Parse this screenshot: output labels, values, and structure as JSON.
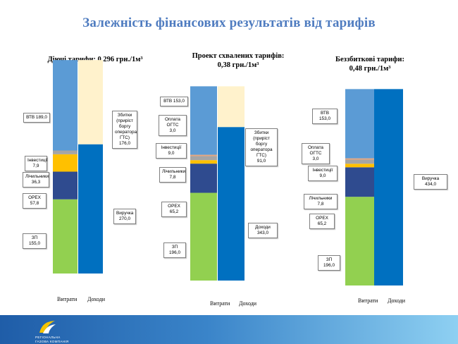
{
  "page": {
    "title": "Залежність фінансових результатів від тарифів",
    "logo_text_line1": "РЕГІОНАЛЬНА",
    "logo_text_line2": "ГАЗОВА КОМПАНІЯ",
    "colors": {
      "footer_start": "#1f5da8",
      "footer_end": "#8ed0f2",
      "title": "#4f7cc0"
    }
  },
  "chart_data": [
    {
      "type": "bar",
      "stacked": true,
      "subtitle": "Діючі тарифи:   0,296 грн./1м³",
      "categories": [
        "Витрати",
        "Доходи"
      ],
      "series": [
        {
          "name": "ЗП",
          "values": [
            155.0,
            0
          ],
          "color": "#92d050"
        },
        {
          "name": "OPEX",
          "values": [
            57.8,
            0
          ],
          "color": "#2f4b8f"
        },
        {
          "name": "Лічильники",
          "values": [
            36.3,
            0
          ],
          "color": "#ffc000"
        },
        {
          "name": "Інвестиції",
          "values": [
            7.9,
            0
          ],
          "color": "#a5a5a5"
        },
        {
          "name": "ВТВ",
          "values": [
            189.0,
            0
          ],
          "color": "#5b9bd5"
        },
        {
          "name": "Виручка",
          "values": [
            0,
            270.0
          ],
          "color": "#0070c0"
        },
        {
          "name": "Збитки (приріст боргу оператора ГТС)",
          "values": [
            0,
            176.0
          ],
          "color": "#fff2cc"
        }
      ],
      "annotations": [
        {
          "text": "ВТВ  189,0"
        },
        {
          "text": "Інвестиції\n7,9"
        },
        {
          "text": "Лічильники\n36,3"
        },
        {
          "text": "OPEX  57,8"
        },
        {
          "text": "ЗП  155,0"
        },
        {
          "text": "Збитки\n(приріст\nборгу\nоператора\nГТС) 176,0"
        },
        {
          "text": "Виручка\n270,0"
        }
      ]
    },
    {
      "type": "bar",
      "stacked": true,
      "subtitle": "Проект схвалених тарифів:\n0,38 грн./1м³",
      "categories": [
        "Витрати",
        "Доходи"
      ],
      "series": [
        {
          "name": "ЗП",
          "values": [
            196.0,
            0
          ],
          "color": "#92d050"
        },
        {
          "name": "OPEX",
          "values": [
            65.2,
            0
          ],
          "color": "#2f4b8f"
        },
        {
          "name": "Лічильники",
          "values": [
            7.8,
            0
          ],
          "color": "#ffc000"
        },
        {
          "name": "Інвестиції",
          "values": [
            9.0,
            0
          ],
          "color": "#a5a5a5"
        },
        {
          "name": "Оплата ОГТС",
          "values": [
            3.0,
            0
          ],
          "color": "#e6a57e"
        },
        {
          "name": "ВТВ",
          "values": [
            153.0,
            0
          ],
          "color": "#5b9bd5"
        },
        {
          "name": "Доходи",
          "values": [
            0,
            343.0
          ],
          "color": "#0070c0"
        },
        {
          "name": "Збитки (приріст боргу оператора ГТС)",
          "values": [
            0,
            91.0
          ],
          "color": "#fff2cc"
        }
      ],
      "annotations": [
        {
          "text": "ВТВ  153,0"
        },
        {
          "text": "Оплата ОГТС\n3,0"
        },
        {
          "text": "Інвестиції  9,0"
        },
        {
          "text": "Лічильники\n7,8"
        },
        {
          "text": "OPEX  65,2"
        },
        {
          "text": "ЗП  196,0"
        },
        {
          "text": "Збитки\n(приріст боргу\nоператора ГТС)\n91,0"
        },
        {
          "text": "Доходи  343,0"
        }
      ]
    },
    {
      "type": "bar",
      "stacked": true,
      "subtitle": "Беззбиткові тарифи:\n0,48 грн./1м³",
      "categories": [
        "Витрати",
        "Доходи"
      ],
      "series": [
        {
          "name": "ЗП",
          "values": [
            196.0,
            0
          ],
          "color": "#92d050"
        },
        {
          "name": "OPEX",
          "values": [
            65.2,
            0
          ],
          "color": "#2f4b8f"
        },
        {
          "name": "Лічильники",
          "values": [
            7.8,
            0
          ],
          "color": "#ffc000"
        },
        {
          "name": "Інвестиції",
          "values": [
            9.0,
            0
          ],
          "color": "#a5a5a5"
        },
        {
          "name": "Оплата ОГТС",
          "values": [
            3.0,
            0
          ],
          "color": "#e6a57e"
        },
        {
          "name": "ВТВ",
          "values": [
            153.0,
            0
          ],
          "color": "#5b9bd5"
        },
        {
          "name": "Виручка",
          "values": [
            0,
            434.0
          ],
          "color": "#0070c0"
        }
      ],
      "annotations": [
        {
          "text": "ВТВ  153,0"
        },
        {
          "text": "Оплата ОГТС\n3,0"
        },
        {
          "text": "Інвестиції  9,0"
        },
        {
          "text": "Лічильники  7,8"
        },
        {
          "text": "OPEX  65,2"
        },
        {
          "text": "ЗП  196,0"
        },
        {
          "text": "Виручка  434,0"
        }
      ]
    }
  ]
}
